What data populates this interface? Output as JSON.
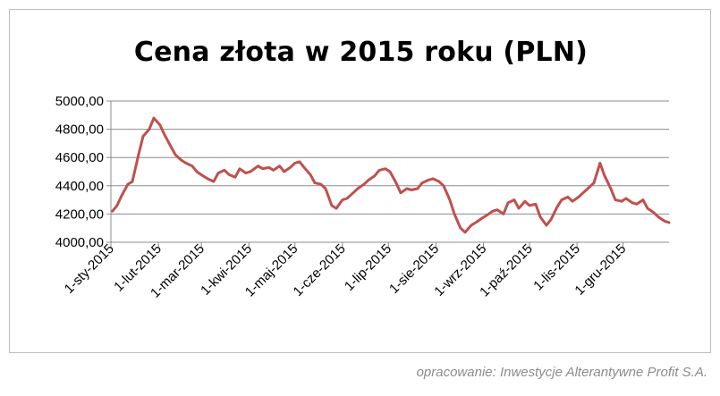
{
  "chart_data": {
    "type": "line",
    "title": "Cena złota w 2015 roku (PLN)",
    "xlabel": "",
    "ylabel": "",
    "ylim": [
      4000,
      5000
    ],
    "yticks": [
      4000,
      4200,
      4400,
      4600,
      4800,
      5000
    ],
    "ytick_labels": [
      "4000,00",
      "4200,00",
      "4400,00",
      "4600,00",
      "4800,00",
      "5000,00"
    ],
    "xticks": [
      "2015-01-01",
      "2015-02-01",
      "2015-03-01",
      "2015-04-01",
      "2015-05-01",
      "2015-06-01",
      "2015-07-01",
      "2015-08-01",
      "2015-09-01",
      "2015-10-01",
      "2015-11-01",
      "2015-12-01"
    ],
    "xtick_labels": [
      "1-sty-2015",
      "1-lut-2015",
      "1-mar-2015",
      "1-kwi-2015",
      "1-maj-2015",
      "1-cze-2015",
      "1-lip-2015",
      "1-sie-2015",
      "1-wrz-2015",
      "1-paź-2015",
      "1-lis-2015",
      "1-gru-2015"
    ],
    "xlim": [
      "2015-01-01",
      "2015-12-31"
    ],
    "grid": "horizontal",
    "legend": "none",
    "line_color": "#c0504d",
    "series": [
      {
        "x": [
          "2015-01-02",
          "2015-01-05",
          "2015-01-08",
          "2015-01-12",
          "2015-01-15",
          "2015-01-19",
          "2015-01-22",
          "2015-01-26",
          "2015-01-29",
          "2015-02-02",
          "2015-02-05",
          "2015-02-09",
          "2015-02-12",
          "2015-02-16",
          "2015-02-19",
          "2015-02-23",
          "2015-02-26",
          "2015-03-02",
          "2015-03-05",
          "2015-03-09",
          "2015-03-12",
          "2015-03-16",
          "2015-03-19",
          "2015-03-23",
          "2015-03-26",
          "2015-03-30",
          "2015-04-02",
          "2015-04-07",
          "2015-04-10",
          "2015-04-14",
          "2015-04-17",
          "2015-04-21",
          "2015-04-24",
          "2015-04-28",
          "2015-05-01",
          "2015-05-04",
          "2015-05-07",
          "2015-05-11",
          "2015-05-14",
          "2015-05-18",
          "2015-05-21",
          "2015-05-25",
          "2015-05-28",
          "2015-06-01",
          "2015-06-04",
          "2015-06-08",
          "2015-06-11",
          "2015-06-15",
          "2015-06-18",
          "2015-06-22",
          "2015-06-25",
          "2015-06-29",
          "2015-07-02",
          "2015-07-06",
          "2015-07-09",
          "2015-07-13",
          "2015-07-16",
          "2015-07-20",
          "2015-07-23",
          "2015-07-27",
          "2015-07-30",
          "2015-08-03",
          "2015-08-06",
          "2015-08-10",
          "2015-08-13",
          "2015-08-17",
          "2015-08-20",
          "2015-08-24",
          "2015-08-27",
          "2015-08-31",
          "2015-09-03",
          "2015-09-07",
          "2015-09-10",
          "2015-09-14",
          "2015-09-17",
          "2015-09-21",
          "2015-09-24",
          "2015-09-28",
          "2015-10-01",
          "2015-10-05",
          "2015-10-08",
          "2015-10-12",
          "2015-10-15",
          "2015-10-19",
          "2015-10-22",
          "2015-10-26",
          "2015-10-29",
          "2015-11-02",
          "2015-11-05",
          "2015-11-09",
          "2015-11-12",
          "2015-11-16",
          "2015-11-19",
          "2015-11-23",
          "2015-11-26",
          "2015-11-30",
          "2015-12-03",
          "2015-12-07",
          "2015-12-10",
          "2015-12-14",
          "2015-12-17",
          "2015-12-21",
          "2015-12-24",
          "2015-12-28",
          "2015-12-31"
        ],
        "y": [
          4220,
          4260,
          4330,
          4410,
          4430,
          4620,
          4750,
          4800,
          4880,
          4830,
          4760,
          4680,
          4620,
          4580,
          4560,
          4540,
          4500,
          4470,
          4450,
          4430,
          4490,
          4510,
          4480,
          4460,
          4520,
          4490,
          4500,
          4540,
          4520,
          4530,
          4510,
          4540,
          4500,
          4530,
          4560,
          4570,
          4530,
          4480,
          4420,
          4410,
          4380,
          4260,
          4240,
          4300,
          4310,
          4350,
          4380,
          4410,
          4440,
          4470,
          4510,
          4520,
          4500,
          4420,
          4350,
          4380,
          4370,
          4380,
          4420,
          4440,
          4450,
          4430,
          4400,
          4300,
          4200,
          4100,
          4070,
          4120,
          4140,
          4170,
          4190,
          4220,
          4230,
          4200,
          4280,
          4300,
          4240,
          4290,
          4260,
          4270,
          4180,
          4120,
          4160,
          4250,
          4300,
          4320,
          4290,
          4320,
          4350,
          4390,
          4420,
          4560,
          4470,
          4380,
          4300,
          4290,
          4310,
          4280,
          4270,
          4300,
          4240,
          4210,
          4180,
          4150,
          4140
        ]
      }
    ]
  },
  "source_note": "opracowanie: Inwestycje Alterantywne Profit S.A."
}
